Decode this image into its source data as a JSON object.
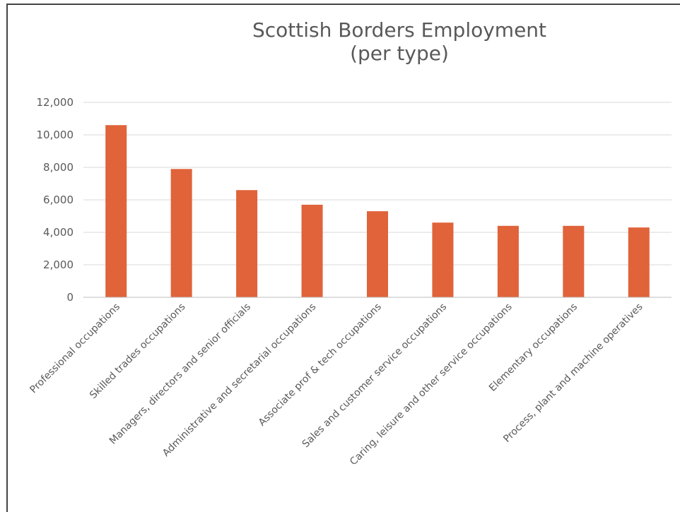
{
  "chart_data": {
    "type": "bar",
    "title": "Scottish Borders Employment",
    "subtitle": "(per type)",
    "xlabel": "",
    "ylabel": "",
    "ylim": [
      0,
      12000
    ],
    "yticks": [
      "0",
      "2,000",
      "4,000",
      "6,000",
      "8,000",
      "10,000",
      "12,000"
    ],
    "ytick_values": [
      0,
      2000,
      4000,
      6000,
      8000,
      10000,
      12000
    ],
    "grid": true,
    "legend": "none",
    "bar_color": "#E0633A",
    "categories": [
      "Professional occupations",
      "Skilled trades occupations",
      "Managers, directors and senior officials",
      "Administrative and secretarial occupations",
      "Associate prof & tech occupations",
      "Sales and customer service occupations",
      "Caring, leisure and other service occupations",
      "Elementary occupations",
      "Process, plant and machine operatives"
    ],
    "values": [
      10600,
      7900,
      6600,
      5700,
      5300,
      4600,
      4400,
      4400,
      4300
    ]
  }
}
